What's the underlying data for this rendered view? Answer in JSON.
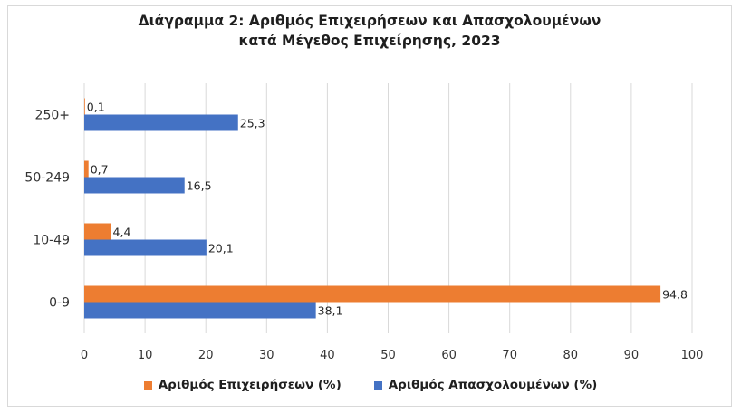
{
  "chart_data": {
    "type": "bar",
    "orientation": "horizontal",
    "title_lines": [
      "Διάγραμμα 2: Αριθμός Επιχειρήσεων και Απασχολουμένων",
      "κατά Μέγεθος Επιχείρησης, 2023"
    ],
    "categories": [
      "250+",
      "50-249",
      "10-49",
      "0-9"
    ],
    "series": [
      {
        "name": "Αριθμός Επιχειρήσεων (%)",
        "color": "#ed7d31",
        "values": [
          0.1,
          0.7,
          4.4,
          94.8
        ],
        "labels": [
          "0,1",
          "0,7",
          "4,4",
          "94,8"
        ]
      },
      {
        "name": "Αριθμός Απασχολουμένων (%)",
        "color": "#4472c4",
        "values": [
          25.3,
          16.5,
          20.1,
          38.1
        ],
        "labels": [
          "25,3",
          "16,5",
          "20,1",
          "38,1"
        ]
      }
    ],
    "xlim": [
      0,
      100
    ],
    "xticks": [
      0,
      10,
      20,
      30,
      40,
      50,
      60,
      70,
      80,
      90,
      100
    ],
    "grid": true,
    "legend_position": "bottom"
  }
}
